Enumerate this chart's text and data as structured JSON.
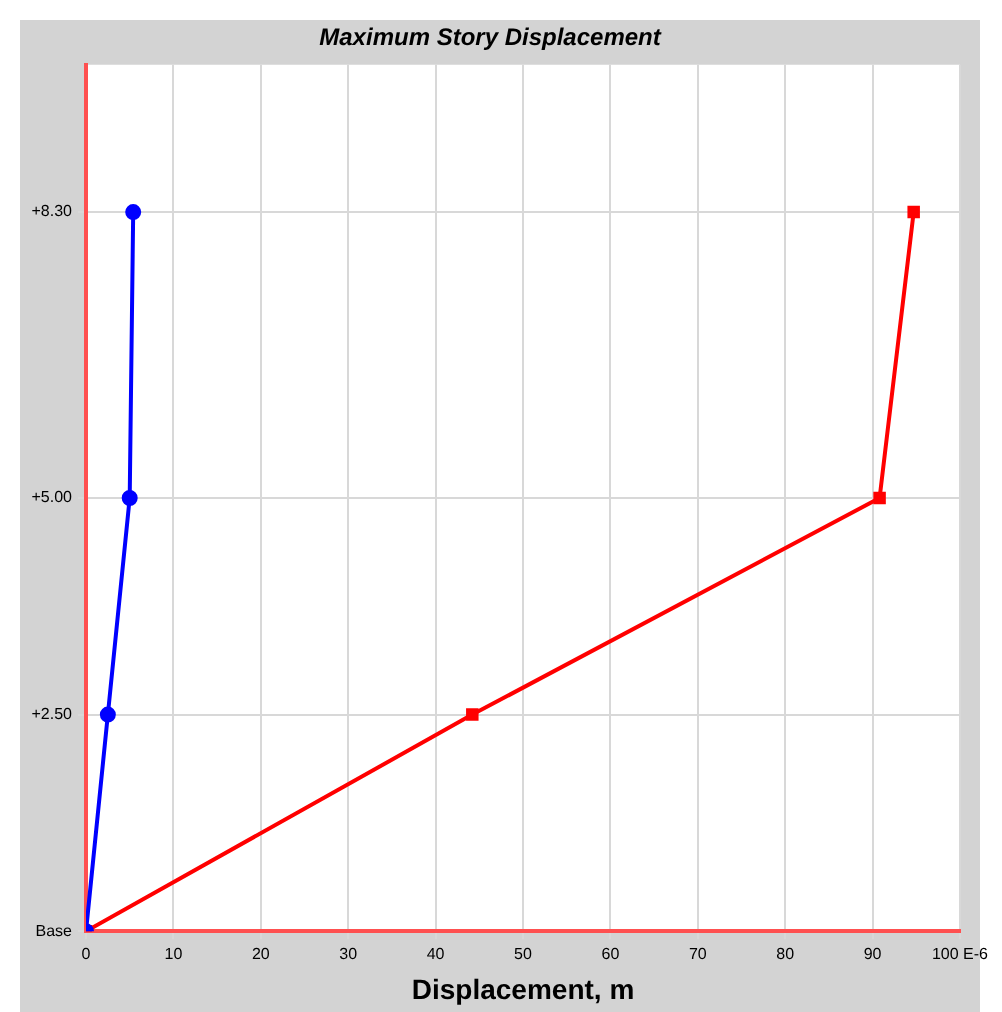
{
  "chart_data": {
    "type": "line",
    "title": "Maximum Story Displacement",
    "xlabel": "Displacement, m",
    "series": [
      {
        "color": "#0000ff",
        "marker": "circle",
        "x": [
          0,
          2.5,
          5.0,
          5.4
        ],
        "values": [
          0,
          2.5,
          5,
          8.3
        ]
      },
      {
        "color": "#ff0000",
        "marker": "square",
        "x": [
          0,
          44.2,
          90.8,
          94.7
        ],
        "values": [
          0,
          2.5,
          5,
          8.3
        ]
      }
    ],
    "xlim": [
      0,
      100
    ],
    "xticks": [
      0,
      10,
      20,
      30,
      40,
      50,
      60,
      70,
      80,
      90,
      {
        "value": 100,
        "label": "100 E-6"
      }
    ],
    "ylim": [
      0,
      10
    ],
    "yticks": [
      {
        "value": 0,
        "label": "Base"
      },
      {
        "value": 2.5,
        "label": "+2.50"
      },
      {
        "value": 5,
        "label": "+5.00"
      },
      {
        "value": 8.3,
        "label": "+8.30"
      }
    ],
    "grid": true,
    "legend": false,
    "line_style": "solid"
  }
}
